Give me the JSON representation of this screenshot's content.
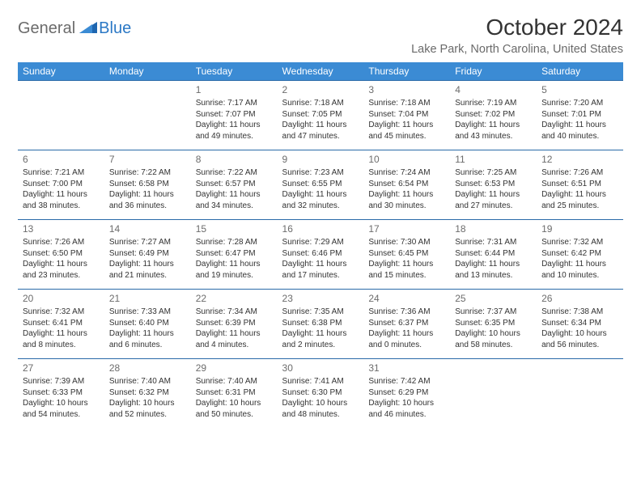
{
  "brand": {
    "word1": "General",
    "word2": "Blue"
  },
  "title": "October 2024",
  "location": "Lake Park, North Carolina, United States",
  "colors": {
    "header_bg": "#3b8bd4",
    "row_border": "#2a6aa8",
    "text": "#333333",
    "muted": "#6a6a6a",
    "logo_gray": "#6b6b6b",
    "logo_blue": "#2b78c5",
    "background": "#ffffff"
  },
  "calendar": {
    "type": "table",
    "columns": [
      "Sunday",
      "Monday",
      "Tuesday",
      "Wednesday",
      "Thursday",
      "Friday",
      "Saturday"
    ],
    "weeks": [
      [
        null,
        null,
        {
          "d": "1",
          "sr": "7:17 AM",
          "ss": "7:07 PM",
          "dl": "11 hours and 49 minutes."
        },
        {
          "d": "2",
          "sr": "7:18 AM",
          "ss": "7:05 PM",
          "dl": "11 hours and 47 minutes."
        },
        {
          "d": "3",
          "sr": "7:18 AM",
          "ss": "7:04 PM",
          "dl": "11 hours and 45 minutes."
        },
        {
          "d": "4",
          "sr": "7:19 AM",
          "ss": "7:02 PM",
          "dl": "11 hours and 43 minutes."
        },
        {
          "d": "5",
          "sr": "7:20 AM",
          "ss": "7:01 PM",
          "dl": "11 hours and 40 minutes."
        }
      ],
      [
        {
          "d": "6",
          "sr": "7:21 AM",
          "ss": "7:00 PM",
          "dl": "11 hours and 38 minutes."
        },
        {
          "d": "7",
          "sr": "7:22 AM",
          "ss": "6:58 PM",
          "dl": "11 hours and 36 minutes."
        },
        {
          "d": "8",
          "sr": "7:22 AM",
          "ss": "6:57 PM",
          "dl": "11 hours and 34 minutes."
        },
        {
          "d": "9",
          "sr": "7:23 AM",
          "ss": "6:55 PM",
          "dl": "11 hours and 32 minutes."
        },
        {
          "d": "10",
          "sr": "7:24 AM",
          "ss": "6:54 PM",
          "dl": "11 hours and 30 minutes."
        },
        {
          "d": "11",
          "sr": "7:25 AM",
          "ss": "6:53 PM",
          "dl": "11 hours and 27 minutes."
        },
        {
          "d": "12",
          "sr": "7:26 AM",
          "ss": "6:51 PM",
          "dl": "11 hours and 25 minutes."
        }
      ],
      [
        {
          "d": "13",
          "sr": "7:26 AM",
          "ss": "6:50 PM",
          "dl": "11 hours and 23 minutes."
        },
        {
          "d": "14",
          "sr": "7:27 AM",
          "ss": "6:49 PM",
          "dl": "11 hours and 21 minutes."
        },
        {
          "d": "15",
          "sr": "7:28 AM",
          "ss": "6:47 PM",
          "dl": "11 hours and 19 minutes."
        },
        {
          "d": "16",
          "sr": "7:29 AM",
          "ss": "6:46 PM",
          "dl": "11 hours and 17 minutes."
        },
        {
          "d": "17",
          "sr": "7:30 AM",
          "ss": "6:45 PM",
          "dl": "11 hours and 15 minutes."
        },
        {
          "d": "18",
          "sr": "7:31 AM",
          "ss": "6:44 PM",
          "dl": "11 hours and 13 minutes."
        },
        {
          "d": "19",
          "sr": "7:32 AM",
          "ss": "6:42 PM",
          "dl": "11 hours and 10 minutes."
        }
      ],
      [
        {
          "d": "20",
          "sr": "7:32 AM",
          "ss": "6:41 PM",
          "dl": "11 hours and 8 minutes."
        },
        {
          "d": "21",
          "sr": "7:33 AM",
          "ss": "6:40 PM",
          "dl": "11 hours and 6 minutes."
        },
        {
          "d": "22",
          "sr": "7:34 AM",
          "ss": "6:39 PM",
          "dl": "11 hours and 4 minutes."
        },
        {
          "d": "23",
          "sr": "7:35 AM",
          "ss": "6:38 PM",
          "dl": "11 hours and 2 minutes."
        },
        {
          "d": "24",
          "sr": "7:36 AM",
          "ss": "6:37 PM",
          "dl": "11 hours and 0 minutes."
        },
        {
          "d": "25",
          "sr": "7:37 AM",
          "ss": "6:35 PM",
          "dl": "10 hours and 58 minutes."
        },
        {
          "d": "26",
          "sr": "7:38 AM",
          "ss": "6:34 PM",
          "dl": "10 hours and 56 minutes."
        }
      ],
      [
        {
          "d": "27",
          "sr": "7:39 AM",
          "ss": "6:33 PM",
          "dl": "10 hours and 54 minutes."
        },
        {
          "d": "28",
          "sr": "7:40 AM",
          "ss": "6:32 PM",
          "dl": "10 hours and 52 minutes."
        },
        {
          "d": "29",
          "sr": "7:40 AM",
          "ss": "6:31 PM",
          "dl": "10 hours and 50 minutes."
        },
        {
          "d": "30",
          "sr": "7:41 AM",
          "ss": "6:30 PM",
          "dl": "10 hours and 48 minutes."
        },
        {
          "d": "31",
          "sr": "7:42 AM",
          "ss": "6:29 PM",
          "dl": "10 hours and 46 minutes."
        },
        null,
        null
      ]
    ],
    "labels": {
      "sunrise": "Sunrise:",
      "sunset": "Sunset:",
      "daylight": "Daylight:"
    }
  }
}
